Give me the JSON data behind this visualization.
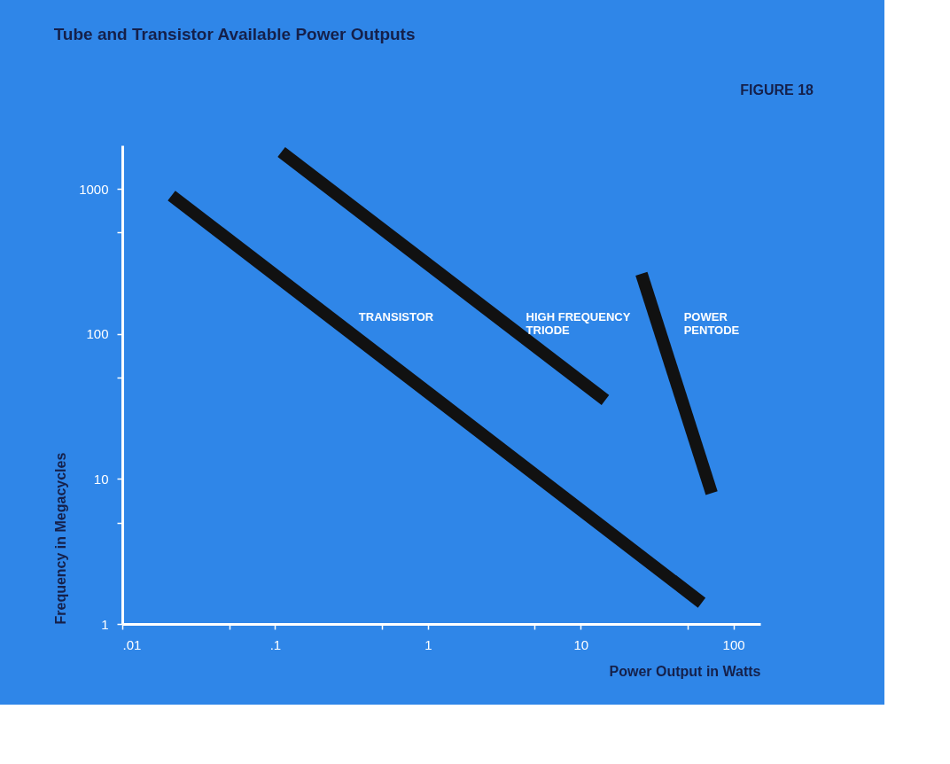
{
  "chart_data": {
    "type": "line",
    "title": "Tube and Transistor Available Power Outputs",
    "annotations": [
      "FIGURE 18"
    ],
    "xlabel": "Power Output in Watts",
    "ylabel": "Frequency in Megacycles",
    "log": "xy",
    "grid": false,
    "legend": false,
    "marker": "none",
    "line_style": "solid",
    "xlim": [
      0.01,
      150
    ],
    "ylim": [
      1,
      2000
    ],
    "xticks": [
      {
        "value": 0.01,
        "label": ".01"
      },
      {
        "value": 0.05,
        "label": null
      },
      {
        "value": 0.1,
        "label": ".1"
      },
      {
        "value": 0.5,
        "label": null
      },
      1,
      {
        "value": 5,
        "label": null
      },
      10,
      {
        "value": 50,
        "label": null
      },
      100
    ],
    "yticks": [
      1,
      {
        "value": 5,
        "label": null
      },
      10,
      {
        "value": 50,
        "label": null
      },
      100,
      {
        "value": 500,
        "label": null
      },
      1000
    ],
    "series": [
      {
        "name": "TRANSISTOR",
        "color": "#111111",
        "x": [
          0.021,
          62
        ],
        "values": [
          900,
          1.4
        ]
      },
      {
        "name": "HIGH FREQUENCY\nTRIODE",
        "color": "#111111",
        "x": [
          0.11,
          14.5
        ],
        "values": [
          1800,
          35
        ]
      },
      {
        "name": "POWER\nPENTODE",
        "color": "#111111",
        "x": [
          25,
          72
        ],
        "values": [
          260,
          8
        ]
      }
    ]
  }
}
